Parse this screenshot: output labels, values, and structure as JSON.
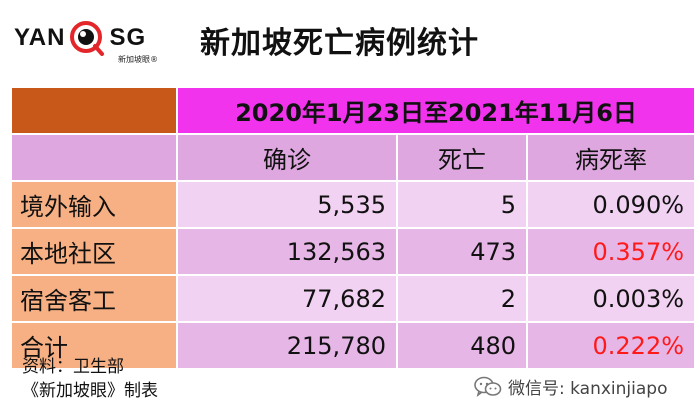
{
  "logo": {
    "left": "YAN",
    "right": "SG",
    "sub": "新加坡眼®"
  },
  "title": "新加坡死亡病例统计",
  "date_range": "2020年1月23日至2021年11月6日",
  "columns": [
    "确诊",
    "死亡",
    "病死率"
  ],
  "rows": [
    {
      "label": "境外输入",
      "confirmed": "5,535",
      "deaths": "5",
      "rate": "0.090%",
      "rate_color": "#111111"
    },
    {
      "label": "本地社区",
      "confirmed": "132,563",
      "deaths": "473",
      "rate": "0.357%",
      "rate_color": "#ff1a1a"
    },
    {
      "label": "宿舍客工",
      "confirmed": "77,682",
      "deaths": "2",
      "rate": "0.003%",
      "rate_color": "#111111"
    },
    {
      "label": "合计",
      "confirmed": "215,780",
      "deaths": "480",
      "rate": "0.222%",
      "rate_color": "#ff1a1a"
    }
  ],
  "footer": {
    "source": "资料：卫生部",
    "credit": "《新加坡眼》制表",
    "wechat": "微信号: kanxinjiapo"
  },
  "colors": {
    "corner": "#c8581a",
    "date_band": "#f233ee",
    "header": "#dea7df",
    "row_label": "#f7b083",
    "cell_light": "#f2d2f2",
    "cell_dark": "#e6b6e6",
    "highlight": "#ff1a1a"
  }
}
